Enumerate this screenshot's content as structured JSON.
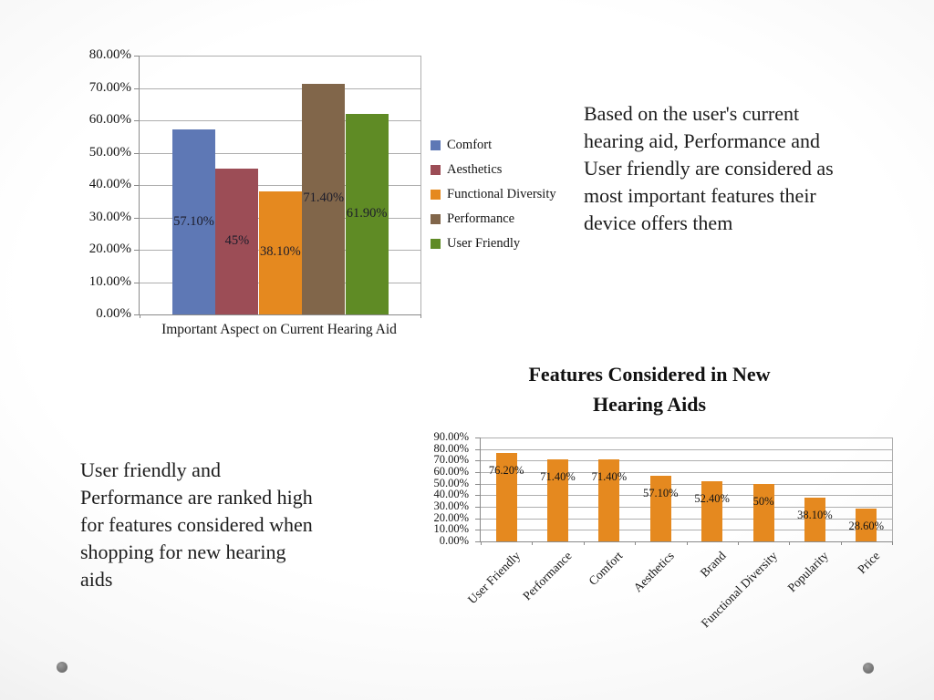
{
  "notes": {
    "current_aid": "Based on the  user's current\nhearing aid, Performance and\nUser friendly are considered as\nmost important features their\ndevice offers them",
    "new_aid": "User friendly and\nPerformance are ranked high\nfor features considered when\nshopping for new hearing\naids"
  },
  "chart_data": [
    {
      "type": "bar",
      "title": "",
      "xlabel": "Important Aspect on Current Hearing Aid",
      "ylabel": "",
      "categories": [
        "Comfort",
        "Aesthetics",
        "Functional Diversity",
        "Performance",
        "User Friendly"
      ],
      "values": [
        57.1,
        45,
        38.1,
        71.4,
        61.9
      ],
      "data_labels": [
        "57.10%",
        "45%",
        "38.10%",
        "71.40%",
        "61.90%"
      ],
      "colors": [
        "#5E78B5",
        "#9C4D56",
        "#E5891F",
        "#81664A",
        "#5F8B25"
      ],
      "ylim": [
        0,
        80
      ],
      "ytick_labels": [
        "0.00%",
        "10.00%",
        "20.00%",
        "30.00%",
        "40.00%",
        "50.00%",
        "60.00%",
        "70.00%",
        "80.00%"
      ],
      "grid": true,
      "legend_position": "right"
    },
    {
      "type": "bar",
      "title": "Features Considered in New\nHearing Aids",
      "xlabel": "",
      "ylabel": "",
      "categories": [
        "User Friendly",
        "Performance",
        "Comfort",
        "Aesthetics",
        "Brand",
        "Functional Diversity",
        "Popularity",
        "Price"
      ],
      "values": [
        76.2,
        71.4,
        71.4,
        57.1,
        52.4,
        50,
        38.1,
        28.6
      ],
      "data_labels": [
        "76.20%",
        "71.40%",
        "71.40%",
        "57.10%",
        "52.40%",
        "50%",
        "38.10%",
        "28.60%"
      ],
      "bar_color": "#E5891F",
      "ylim": [
        0,
        90
      ],
      "ytick_labels": [
        "0.00%",
        "10.00%",
        "20.00%",
        "30.00%",
        "40.00%",
        "50.00%",
        "60.00%",
        "70.00%",
        "80.00%",
        "90.00%"
      ],
      "grid": true,
      "legend_position": "none",
      "category_label_rotation": -45
    }
  ]
}
